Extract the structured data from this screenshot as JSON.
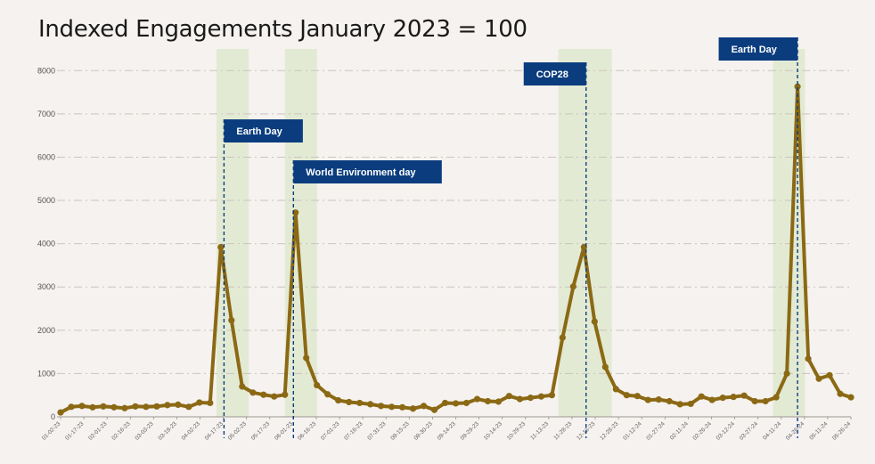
{
  "chart_data": {
    "type": "line",
    "title": "Indexed Engagements January 2023 = 100",
    "xlabel": "",
    "ylabel": "",
    "ylim": [
      0,
      8500
    ],
    "yticks": [
      0,
      1000,
      2000,
      3000,
      4000,
      5000,
      6000,
      7000,
      8000
    ],
    "grid": true,
    "line_color": "#8b6914",
    "band_color": "#e3ead3",
    "annotation_color": "#0b3d7e",
    "x_tick_labels": [
      "01-02-23",
      "01-17-23",
      "02-01-23",
      "02-16-23",
      "03-03-23",
      "03-18-23",
      "04-02-23",
      "04-17-23",
      "05-02-23",
      "05-17-23",
      "06-01-23",
      "06-16-23",
      "07-01-23",
      "07-16-23",
      "07-31-23",
      "08-15-23",
      "08-30-23",
      "09-14-23",
      "09-29-23",
      "10-14-23",
      "10-29-23",
      "11-13-23",
      "11-28-23",
      "12-13-23",
      "12-28-23",
      "01-12-24",
      "01-27-24",
      "02-11-24",
      "02-26-24",
      "03-12-24",
      "03-27-24",
      "04-11-24",
      "04-26-24",
      "05-11-24",
      "05-26-24"
    ],
    "values": [
      100,
      230,
      250,
      220,
      240,
      220,
      200,
      240,
      230,
      240,
      270,
      280,
      230,
      330,
      320,
      3920,
      2230,
      700,
      560,
      510,
      470,
      510,
      4720,
      1360,
      730,
      520,
      380,
      340,
      320,
      290,
      250,
      230,
      220,
      190,
      250,
      160,
      320,
      310,
      320,
      410,
      360,
      350,
      480,
      410,
      440,
      470,
      500,
      1830,
      3010,
      3920,
      2200,
      1150,
      640,
      500,
      480,
      390,
      400,
      360,
      290,
      300,
      470,
      390,
      440,
      460,
      490,
      360,
      360,
      450,
      1000,
      7630,
      1340,
      880,
      960,
      530,
      450
    ],
    "highlight_bands": [
      {
        "from": 14.6,
        "to": 17.6
      },
      {
        "from": 21.0,
        "to": 24.0
      },
      {
        "from": 46.6,
        "to": 51.6
      },
      {
        "from": 66.7,
        "to": 69.7
      }
    ],
    "annotations": [
      {
        "label": "Earth Day",
        "x": 15.3,
        "box_side": "right",
        "box_row": 1
      },
      {
        "label": "World Environment day",
        "x": 21.8,
        "box_side": "right",
        "box_row": 2
      },
      {
        "label": "COP28",
        "x": 49.2,
        "box_side": "left",
        "box_row": 0
      },
      {
        "label": "Earth Day",
        "x": 69.0,
        "box_side": "left",
        "box_row": -1
      }
    ]
  }
}
